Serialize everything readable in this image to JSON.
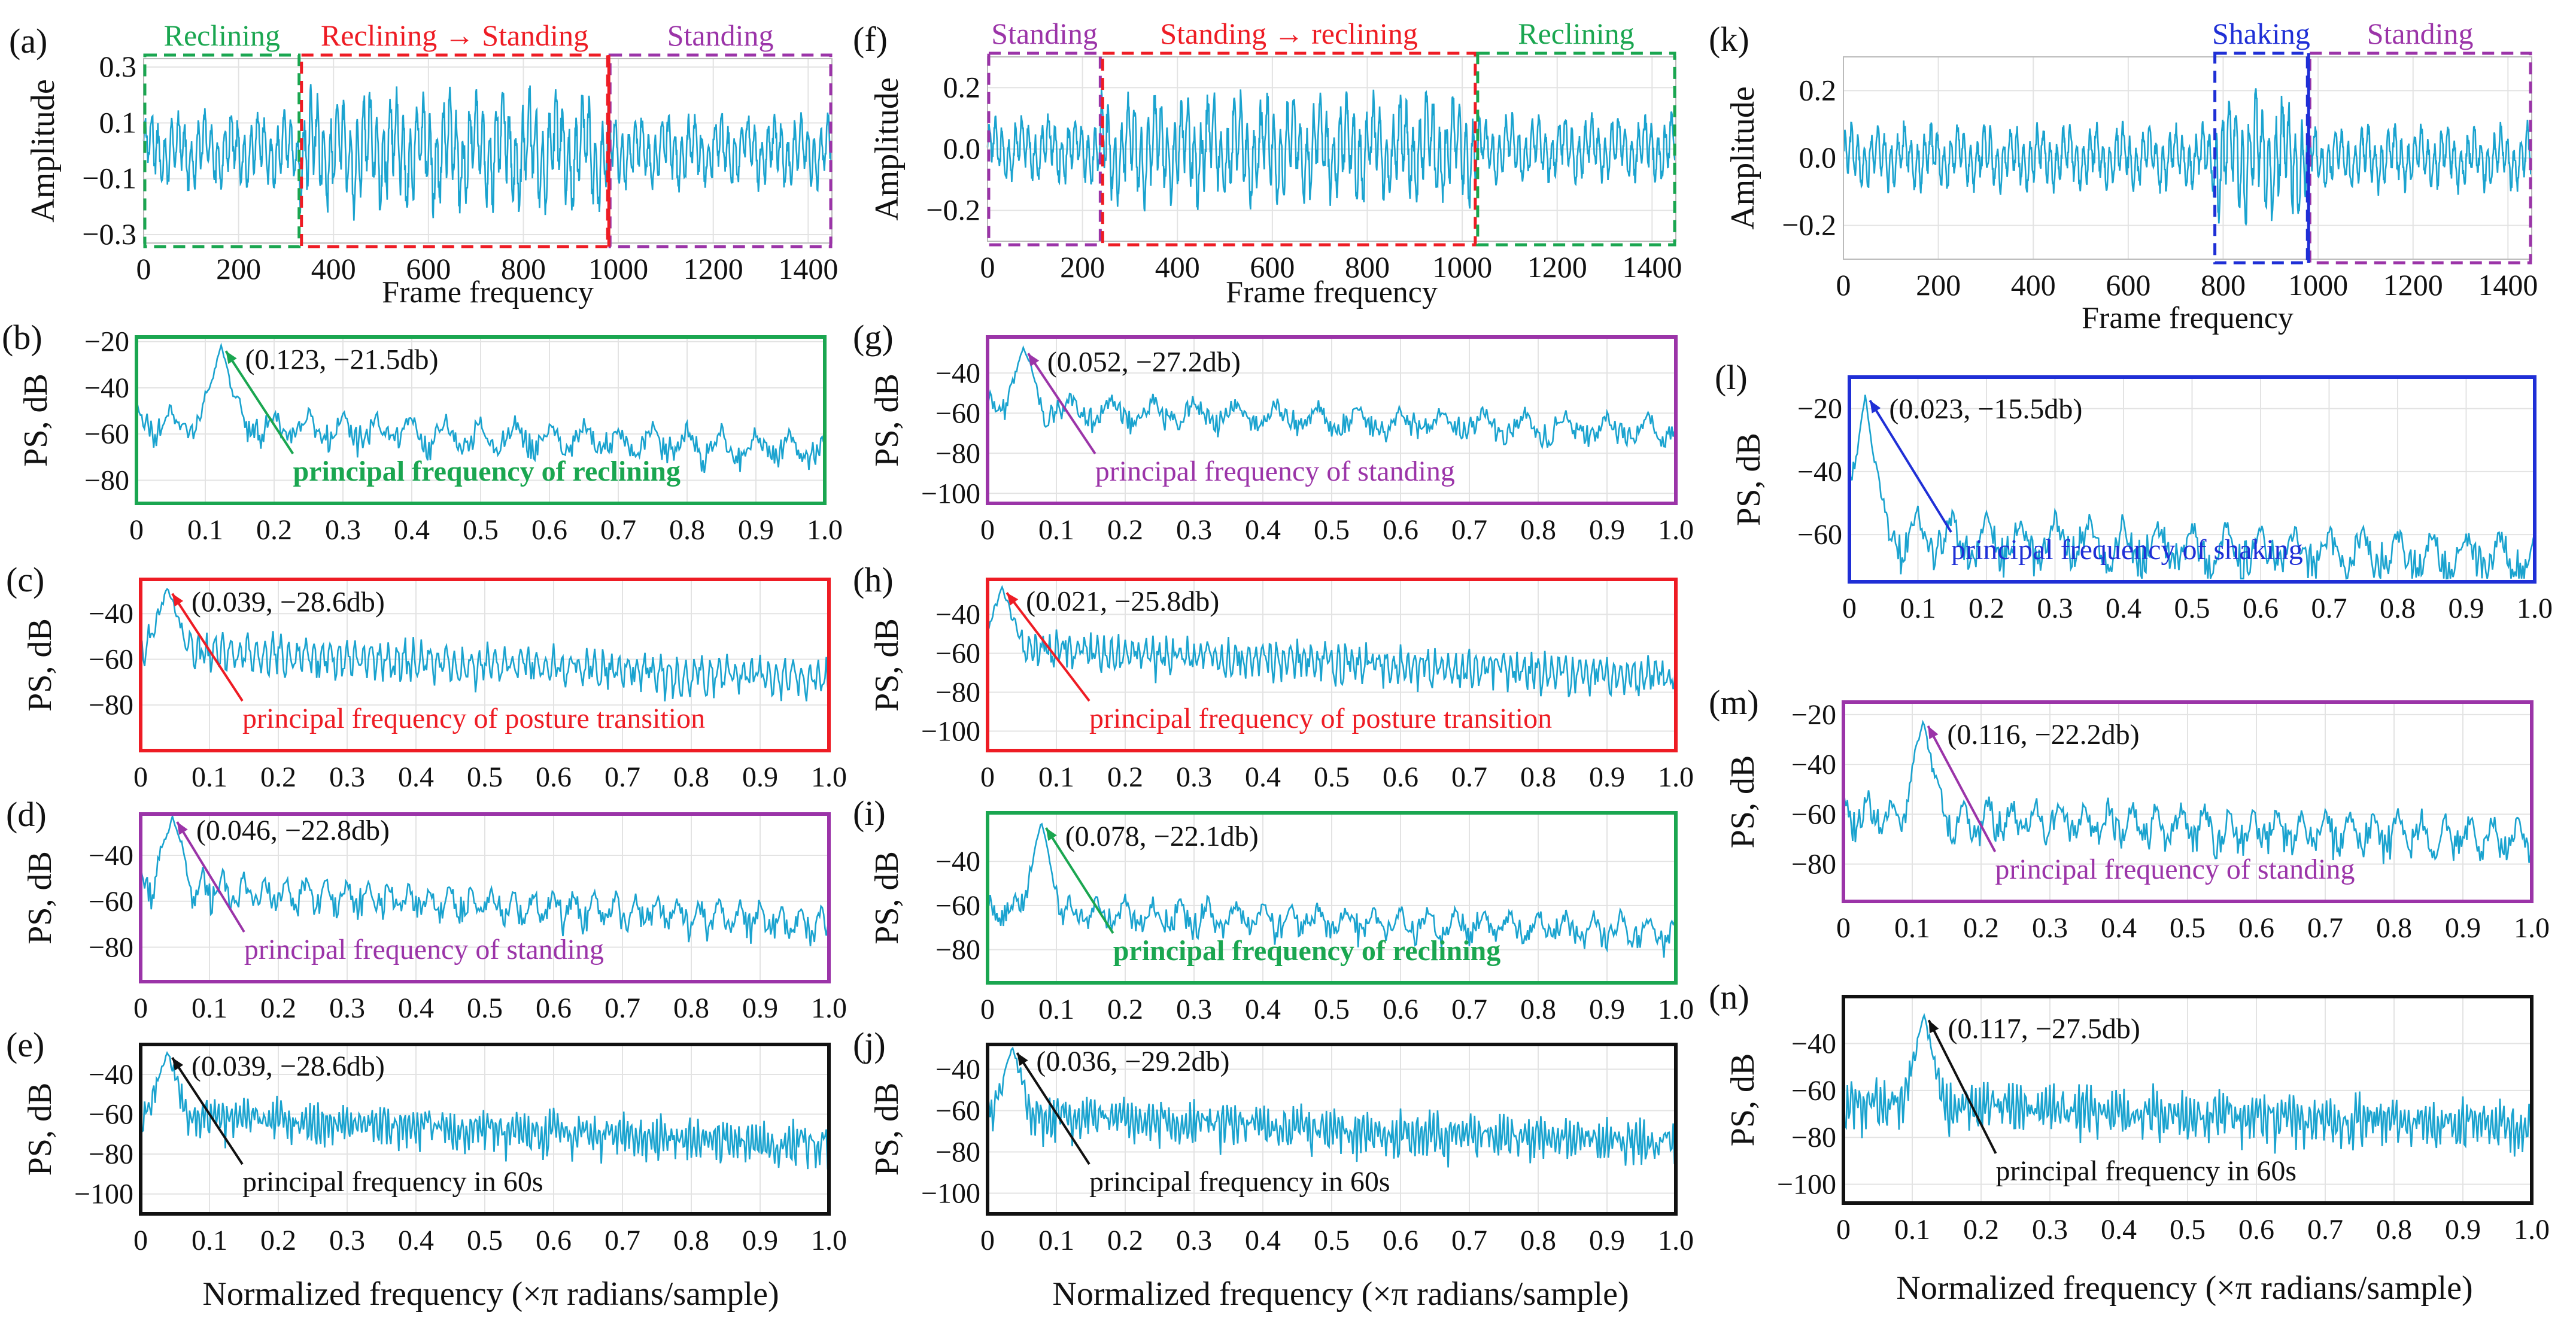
{
  "figure": {
    "xlabel_bottom": "Normalized frequency  (×π radians/sample)",
    "colors": {
      "trace": "#1aa3cf",
      "reclining": "#1aa650",
      "transition": "#ee1c24",
      "standing": "#9b34a8",
      "shaking": "#1f2fd6",
      "all": "#111111",
      "grid": "#e3e3e3",
      "axes": "#555555"
    }
  },
  "chart_data": [
    {
      "id": "a",
      "panel_label": "(a)",
      "type": "line",
      "kind": "time",
      "ylabel": "Amplitude",
      "xlabel": "Frame frequency",
      "xlim": [
        0,
        1450
      ],
      "ylim": [
        -0.33,
        0.33
      ],
      "xticks": [
        0,
        200,
        400,
        600,
        800,
        1000,
        1200,
        1400
      ],
      "yticks": [
        -0.3,
        -0.1,
        0.1,
        0.3
      ],
      "ytick_labels": [
        "−0.3",
        "−0.1",
        "0.1",
        "0.3"
      ],
      "signal": {
        "n": 1450,
        "base_amp": 0.11,
        "seed": 3
      },
      "segments": [
        {
          "label": "Reclining",
          "from": 0,
          "to": 330,
          "color": "reclining"
        },
        {
          "label": "Reclining → Standing",
          "from": 330,
          "to": 980,
          "color": "transition"
        },
        {
          "label": "Standing",
          "from": 980,
          "to": 1450,
          "color": "standing"
        }
      ],
      "divider_at": 980,
      "divider_color": "transition"
    },
    {
      "id": "f",
      "panel_label": "(f)",
      "type": "line",
      "kind": "time",
      "ylabel": "Amplitude",
      "xlabel": "Frame frequency",
      "xlim": [
        0,
        1450
      ],
      "ylim": [
        -0.3,
        0.3
      ],
      "xticks": [
        0,
        200,
        400,
        600,
        800,
        1000,
        1200,
        1400
      ],
      "yticks": [
        -0.2,
        0.0,
        0.2
      ],
      "ytick_labels": [
        "−0.2",
        "0.0",
        "0.2"
      ],
      "signal": {
        "n": 1450,
        "base_amp": 0.09,
        "seed": 7
      },
      "segments": [
        {
          "label": "Standing",
          "from": 0,
          "to": 240,
          "color": "standing"
        },
        {
          "label": "Standing → reclining",
          "from": 240,
          "to": 1030,
          "color": "transition"
        },
        {
          "label": "Reclining",
          "from": 1030,
          "to": 1450,
          "color": "reclining"
        }
      ]
    },
    {
      "id": "k",
      "panel_label": "(k)",
      "type": "line",
      "kind": "time",
      "ylabel": "Amplitude",
      "xlabel": "Frame frequency",
      "xlim": [
        0,
        1450
      ],
      "ylim": [
        -0.3,
        0.3
      ],
      "xticks": [
        0,
        200,
        400,
        600,
        800,
        1000,
        1200,
        1400
      ],
      "yticks": [
        -0.2,
        0.0,
        0.2
      ],
      "ytick_labels": [
        "−0.2",
        "0.0",
        "0.2"
      ],
      "signal": {
        "n": 1450,
        "base_amp": 0.08,
        "seed": 11
      },
      "segments": [
        {
          "label": "Shaking",
          "from": 780,
          "to": 980,
          "color": "shaking"
        },
        {
          "label": "Standing",
          "from": 980,
          "to": 1450,
          "color": "standing"
        }
      ],
      "divider_at": 980,
      "divider_color": "shaking"
    },
    {
      "id": "b",
      "panel_label": "(b)",
      "type": "line",
      "kind": "spectrum",
      "ylabel": "PS, dB",
      "frame_color": "reclining",
      "xlim": [
        0,
        1.0
      ],
      "ylim": [
        -90,
        -18
      ],
      "xticks": [
        0,
        0.1,
        0.2,
        0.3,
        0.4,
        0.5,
        0.6,
        0.7,
        0.8,
        0.9,
        1.0
      ],
      "xtick_labels": [
        "0",
        "0.1",
        "0.2",
        "0.3",
        "0.4",
        "0.5",
        "0.6",
        "0.7",
        "0.8",
        "0.9",
        "1.0"
      ],
      "yticks": [
        -20,
        -40,
        -60,
        -80
      ],
      "ytick_labels": [
        "−20",
        "−40",
        "−60",
        "−80"
      ],
      "peak": {
        "x": 0.123,
        "y": -21.5,
        "label": "(0.123, −21.5db)"
      },
      "annotation": "principal frequency of reclining",
      "annotation_color": "reclining",
      "spectrum": {
        "base": -48,
        "slope": 12,
        "lobe": 0.05,
        "depth": 14,
        "seed": 21
      }
    },
    {
      "id": "c",
      "panel_label": "(c)",
      "type": "line",
      "kind": "spectrum",
      "ylabel": "PS, dB",
      "frame_color": "transition",
      "xlim": [
        0,
        1.0
      ],
      "ylim": [
        -100,
        -25
      ],
      "xticks": [
        0,
        0.1,
        0.2,
        0.3,
        0.4,
        0.5,
        0.6,
        0.7,
        0.8,
        0.9,
        1.0
      ],
      "xtick_labels": [
        "0",
        "0.1",
        "0.2",
        "0.3",
        "0.4",
        "0.5",
        "0.6",
        "0.7",
        "0.8",
        "0.9",
        "1.0"
      ],
      "yticks": [
        -40,
        -60,
        -80
      ],
      "ytick_labels": [
        "−40",
        "−60",
        "−80"
      ],
      "peak": {
        "x": 0.039,
        "y": -28.6,
        "label": "(0.039, −28.6db)"
      },
      "annotation": "principal frequency of posture transition",
      "annotation_color": "transition",
      "spectrum": {
        "base": -47,
        "slope": 14,
        "lobe": 0.012,
        "depth": 16,
        "seed": 22
      }
    },
    {
      "id": "d",
      "panel_label": "(d)",
      "type": "line",
      "kind": "spectrum",
      "ylabel": "PS, dB",
      "frame_color": "standing",
      "xlim": [
        0,
        1.0
      ],
      "ylim": [
        -95,
        -22
      ],
      "xticks": [
        0,
        0.1,
        0.2,
        0.3,
        0.4,
        0.5,
        0.6,
        0.7,
        0.8,
        0.9,
        1.0
      ],
      "xtick_labels": [
        "0",
        "0.1",
        "0.2",
        "0.3",
        "0.4",
        "0.5",
        "0.6",
        "0.7",
        "0.8",
        "0.9",
        "1.0"
      ],
      "yticks": [
        -40,
        -60,
        -80
      ],
      "ytick_labels": [
        "−40",
        "−60",
        "−80"
      ],
      "peak": {
        "x": 0.046,
        "y": -22.8,
        "label": "(0.046, −22.8db)"
      },
      "annotation": "principal frequency of standing",
      "annotation_color": "standing",
      "spectrum": {
        "base": -46,
        "slope": 16,
        "lobe": 0.03,
        "depth": 15,
        "seed": 23
      }
    },
    {
      "id": "e",
      "panel_label": "(e)",
      "type": "line",
      "kind": "spectrum",
      "ylabel": "PS, dB",
      "frame_color": "all",
      "xlim": [
        0,
        1.0
      ],
      "ylim": [
        -110,
        -25
      ],
      "xticks": [
        0,
        0.1,
        0.2,
        0.3,
        0.4,
        0.5,
        0.6,
        0.7,
        0.8,
        0.9,
        1.0
      ],
      "xtick_labels": [
        "0",
        "0.1",
        "0.2",
        "0.3",
        "0.4",
        "0.5",
        "0.6",
        "0.7",
        "0.8",
        "0.9",
        "1.0"
      ],
      "yticks": [
        -40,
        -60,
        -80,
        -100
      ],
      "ytick_labels": [
        "−40",
        "−60",
        "−80",
        "−100"
      ],
      "peak": {
        "x": 0.039,
        "y": -28.6,
        "label": "(0.039, −28.6db)"
      },
      "annotation": "principal frequency in 60s",
      "annotation_color": "all",
      "spectrum": {
        "base": -50,
        "slope": 15,
        "lobe": 0.006,
        "depth": 20,
        "seed": 24
      }
    },
    {
      "id": "g",
      "panel_label": "(g)",
      "type": "line",
      "kind": "spectrum",
      "ylabel": "PS, dB",
      "frame_color": "standing",
      "xlim": [
        0,
        1.0
      ],
      "ylim": [
        -105,
        -22
      ],
      "xticks": [
        0,
        0.1,
        0.2,
        0.3,
        0.4,
        0.5,
        0.6,
        0.7,
        0.8,
        0.9,
        1.0
      ],
      "xtick_labels": [
        "0",
        "0.1",
        "0.2",
        "0.3",
        "0.4",
        "0.5",
        "0.6",
        "0.7",
        "0.8",
        "0.9",
        "1.0"
      ],
      "yticks": [
        -40,
        -60,
        -80,
        -100
      ],
      "ytick_labels": [
        "−40",
        "−60",
        "−80",
        "−100"
      ],
      "peak": {
        "x": 0.052,
        "y": -27.2,
        "label": "(0.052, −27.2db)"
      },
      "annotation": "principal frequency of standing",
      "annotation_color": "standing",
      "spectrum": {
        "base": -50,
        "slope": 12,
        "lobe": 0.06,
        "depth": 14,
        "seed": 31
      }
    },
    {
      "id": "h",
      "panel_label": "(h)",
      "type": "line",
      "kind": "spectrum",
      "ylabel": "PS, dB",
      "frame_color": "transition",
      "xlim": [
        0,
        1.0
      ],
      "ylim": [
        -110,
        -22
      ],
      "xticks": [
        0,
        0.1,
        0.2,
        0.3,
        0.4,
        0.5,
        0.6,
        0.7,
        0.8,
        0.9,
        1.0
      ],
      "xtick_labels": [
        "0",
        "0.1",
        "0.2",
        "0.3",
        "0.4",
        "0.5",
        "0.6",
        "0.7",
        "0.8",
        "0.9",
        "1.0"
      ],
      "yticks": [
        -40,
        -60,
        -80,
        -100
      ],
      "ytick_labels": [
        "−40",
        "−60",
        "−80",
        "−100"
      ],
      "peak": {
        "x": 0.021,
        "y": -25.8,
        "label": "(0.021, −25.8db)"
      },
      "annotation": "principal frequency of posture transition",
      "annotation_color": "transition",
      "spectrum": {
        "base": -48,
        "slope": 15,
        "lobe": 0.01,
        "depth": 18,
        "seed": 32
      }
    },
    {
      "id": "i",
      "panel_label": "(i)",
      "type": "line",
      "kind": "spectrum",
      "ylabel": "PS, dB",
      "frame_color": "reclining",
      "xlim": [
        0,
        1.0
      ],
      "ylim": [
        -95,
        -18
      ],
      "xticks": [
        0,
        0.1,
        0.2,
        0.3,
        0.4,
        0.5,
        0.6,
        0.7,
        0.8,
        0.9,
        1.0
      ],
      "xtick_labels": [
        "0",
        "0.1",
        "0.2",
        "0.3",
        "0.4",
        "0.5",
        "0.6",
        "0.7",
        "0.8",
        "0.9",
        "1.0"
      ],
      "yticks": [
        -40,
        -60,
        -80
      ],
      "ytick_labels": [
        "−40",
        "−60",
        "−80"
      ],
      "peak": {
        "x": 0.078,
        "y": -22.1,
        "label": "(0.078, −22.1db)"
      },
      "annotation": "principal frequency of reclining",
      "annotation_color": "reclining",
      "spectrum": {
        "base": -55,
        "slope": 10,
        "lobe": 0.04,
        "depth": 14,
        "seed": 33
      }
    },
    {
      "id": "j",
      "panel_label": "(j)",
      "type": "line",
      "kind": "spectrum",
      "ylabel": "PS, dB",
      "frame_color": "all",
      "xlim": [
        0,
        1.0
      ],
      "ylim": [
        -110,
        -28
      ],
      "xticks": [
        0,
        0.1,
        0.2,
        0.3,
        0.4,
        0.5,
        0.6,
        0.7,
        0.8,
        0.9,
        1.0
      ],
      "xtick_labels": [
        "0",
        "0.1",
        "0.2",
        "0.3",
        "0.4",
        "0.5",
        "0.6",
        "0.7",
        "0.8",
        "0.9",
        "1.0"
      ],
      "yticks": [
        -40,
        -60,
        -80,
        -100
      ],
      "ytick_labels": [
        "−40",
        "−60",
        "−80",
        "−100"
      ],
      "peak": {
        "x": 0.036,
        "y": -29.2,
        "label": "(0.036, −29.2db)"
      },
      "annotation": "principal frequency in 60s",
      "annotation_color": "all",
      "spectrum": {
        "base": -52,
        "slope": 14,
        "lobe": 0.006,
        "depth": 20,
        "seed": 34
      }
    },
    {
      "id": "l",
      "panel_label": "(l)",
      "type": "line",
      "kind": "spectrum",
      "ylabel": "PS, dB",
      "frame_color": "shaking",
      "xlim": [
        0,
        1.0
      ],
      "ylim": [
        -75,
        -10
      ],
      "xticks": [
        0,
        0.1,
        0.2,
        0.3,
        0.4,
        0.5,
        0.6,
        0.7,
        0.8,
        0.9,
        1.0
      ],
      "xtick_labels": [
        "0",
        "0.1",
        "0.2",
        "0.3",
        "0.4",
        "0.5",
        "0.6",
        "0.7",
        "0.8",
        "0.9",
        "1.0"
      ],
      "yticks": [
        -20,
        -40,
        -60
      ],
      "ytick_labels": [
        "−20",
        "−40",
        "−60"
      ],
      "peak": {
        "x": 0.023,
        "y": -15.5,
        "label": "(0.023, −15.5db)"
      },
      "annotation": "principal frequency of shaking",
      "annotation_color": "shaking",
      "spectrum": {
        "base": -52,
        "slope": 8,
        "lobe": 0.05,
        "depth": 16,
        "seed": 41
      }
    },
    {
      "id": "m",
      "panel_label": "(m)",
      "type": "line",
      "kind": "spectrum",
      "ylabel": "PS, dB",
      "frame_color": "standing",
      "xlim": [
        0,
        1.0
      ],
      "ylim": [
        -95,
        -15
      ],
      "xticks": [
        0,
        0.1,
        0.2,
        0.3,
        0.4,
        0.5,
        0.6,
        0.7,
        0.8,
        0.9,
        1.0
      ],
      "xtick_labels": [
        "0",
        "0.1",
        "0.2",
        "0.3",
        "0.4",
        "0.5",
        "0.6",
        "0.7",
        "0.8",
        "0.9",
        "1.0"
      ],
      "yticks": [
        -20,
        -40,
        -60,
        -80
      ],
      "ytick_labels": [
        "−20",
        "−40",
        "−60",
        "−80"
      ],
      "peak": {
        "x": 0.116,
        "y": -22.2,
        "label": "(0.116, −22.2db)"
      },
      "annotation": "principal frequency of standing",
      "annotation_color": "standing",
      "spectrum": {
        "base": -52,
        "slope": 10,
        "lobe": 0.035,
        "depth": 16,
        "seed": 42
      }
    },
    {
      "id": "n",
      "panel_label": "(n)",
      "type": "line",
      "kind": "spectrum",
      "ylabel": "PS, dB",
      "frame_color": "all",
      "xlim": [
        0,
        1.0
      ],
      "ylim": [
        -108,
        -20
      ],
      "xticks": [
        0,
        0.1,
        0.2,
        0.3,
        0.4,
        0.5,
        0.6,
        0.7,
        0.8,
        0.9,
        1.0
      ],
      "xtick_labels": [
        "0",
        "0.1",
        "0.2",
        "0.3",
        "0.4",
        "0.5",
        "0.6",
        "0.7",
        "0.8",
        "0.9",
        "1.0"
      ],
      "yticks": [
        -40,
        -60,
        -80,
        -100
      ],
      "ytick_labels": [
        "−40",
        "−60",
        "−80",
        "−100"
      ],
      "peak": {
        "x": 0.117,
        "y": -27.5,
        "label": "(0.117, −27.5db)"
      },
      "annotation": "principal frequency in 60s",
      "annotation_color": "all",
      "spectrum": {
        "base": -55,
        "slope": 10,
        "lobe": 0.006,
        "depth": 20,
        "seed": 43
      }
    }
  ]
}
